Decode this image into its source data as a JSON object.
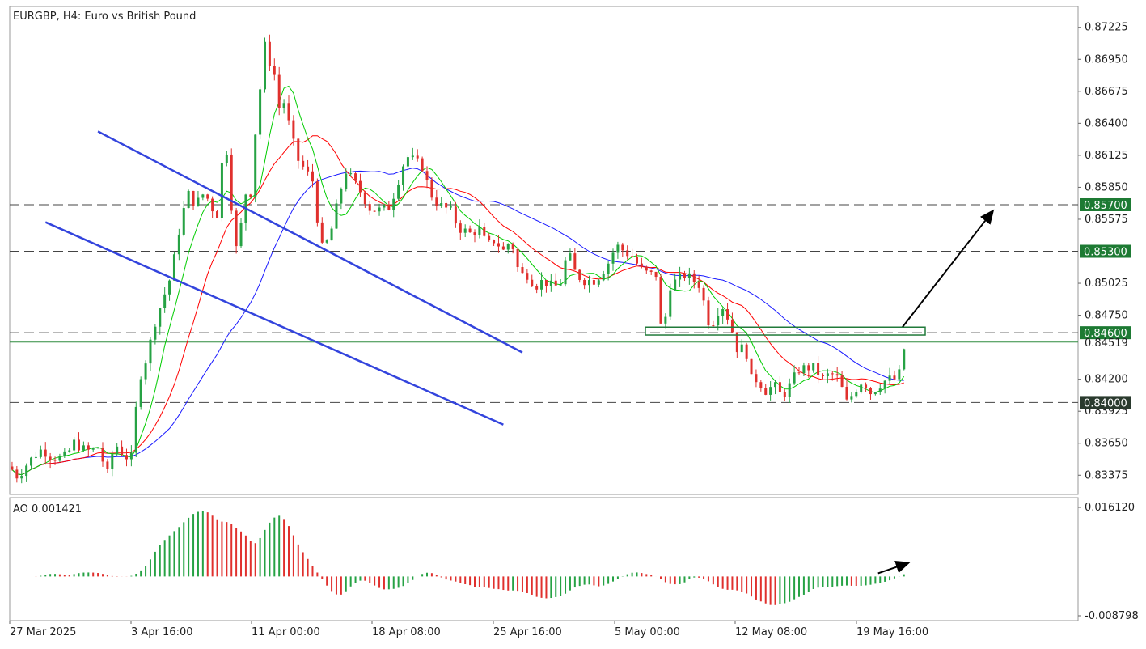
{
  "chart_data": {
    "type": "candlestick",
    "title": "EURGBP, H4:  Euro vs British Pound",
    "ylim": [
      0.8319,
      0.8743
    ],
    "y_ticks": [
      "0.87225",
      "0.86950",
      "0.86675",
      "0.86400",
      "0.86125",
      "0.85850",
      "0.85575",
      "0.85025",
      "0.84750",
      "0.84200",
      "0.83925",
      "0.83650",
      "0.83375"
    ],
    "x_ticks": [
      "27 Mar 2025",
      "3 Apr 16:00",
      "11 Apr 00:00",
      "18 Apr 08:00",
      "25 Apr 16:00",
      "5 May 00:00",
      "12 May 08:00",
      "19 May 16:00"
    ],
    "levels": [
      {
        "price": 0.857,
        "label": "0.85700"
      },
      {
        "price": 0.853,
        "label": "0.85300"
      },
      {
        "price": 0.846,
        "label": "0.84600"
      },
      {
        "price": 0.84,
        "label": "0.84000"
      }
    ],
    "current_price": {
      "price": 0.84519,
      "label": "0.84519"
    },
    "price_path": [
      [
        0,
        0.8345
      ],
      [
        10,
        0.8336
      ],
      [
        20,
        0.8346
      ],
      [
        30,
        0.8354
      ],
      [
        40,
        0.836
      ],
      [
        50,
        0.8354
      ],
      [
        60,
        0.8352
      ],
      [
        70,
        0.8354
      ],
      [
        80,
        0.8366
      ],
      [
        90,
        0.836
      ],
      [
        100,
        0.8358
      ],
      [
        110,
        0.8362
      ],
      [
        115,
        0.835
      ],
      [
        120,
        0.8336
      ],
      [
        130,
        0.8365
      ],
      [
        140,
        0.8356
      ],
      [
        150,
        0.835
      ],
      [
        160,
        0.842
      ],
      [
        170,
        0.844
      ],
      [
        180,
        0.847
      ],
      [
        190,
        0.849
      ],
      [
        200,
        0.851
      ],
      [
        210,
        0.855
      ],
      [
        220,
        0.858
      ],
      [
        230,
        0.857
      ],
      [
        240,
        0.858
      ],
      [
        250,
        0.857
      ],
      [
        255,
        0.8545
      ],
      [
        260,
        0.86
      ],
      [
        270,
        0.862
      ],
      [
        275,
        0.856
      ],
      [
        280,
        0.8532
      ],
      [
        285,
        0.8545
      ],
      [
        290,
        0.858
      ],
      [
        300,
        0.858
      ],
      [
        305,
        0.865
      ],
      [
        312,
        0.868
      ],
      [
        316,
        0.871
      ],
      [
        320,
        0.869
      ],
      [
        325,
        0.87
      ],
      [
        330,
        0.866
      ],
      [
        335,
        0.865
      ],
      [
        340,
        0.866
      ],
      [
        345,
        0.864
      ],
      [
        355,
        0.861
      ],
      [
        365,
        0.86
      ],
      [
        375,
        0.859
      ],
      [
        385,
        0.8532
      ],
      [
        395,
        0.854
      ],
      [
        405,
        0.857
      ],
      [
        415,
        0.86
      ],
      [
        425,
        0.859
      ],
      [
        435,
        0.858
      ],
      [
        445,
        0.8567
      ],
      [
        455,
        0.8565
      ],
      [
        470,
        0.8568
      ],
      [
        480,
        0.859
      ],
      [
        490,
        0.8612
      ],
      [
        500,
        0.8608
      ],
      [
        510,
        0.8603
      ],
      [
        520,
        0.858
      ],
      [
        530,
        0.857
      ],
      [
        545,
        0.8565
      ],
      [
        555,
        0.855
      ],
      [
        570,
        0.8545
      ],
      [
        580,
        0.855
      ],
      [
        590,
        0.8535
      ],
      [
        600,
        0.854
      ],
      [
        610,
        0.853
      ],
      [
        620,
        0.854
      ],
      [
        630,
        0.851
      ],
      [
        640,
        0.851
      ],
      [
        650,
        0.85
      ],
      [
        660,
        0.8505
      ],
      [
        670,
        0.85
      ],
      [
        680,
        0.85
      ],
      [
        690,
        0.853
      ],
      [
        700,
        0.851
      ],
      [
        710,
        0.8505
      ],
      [
        725,
        0.8505
      ],
      [
        740,
        0.852
      ],
      [
        750,
        0.8535
      ],
      [
        760,
        0.853
      ],
      [
        770,
        0.8525
      ],
      [
        780,
        0.8515
      ],
      [
        790,
        0.851
      ],
      [
        800,
        0.851
      ],
      [
        803,
        0.8465
      ],
      [
        810,
        0.8468
      ],
      [
        815,
        0.85
      ],
      [
        825,
        0.8505
      ],
      [
        835,
        0.851
      ],
      [
        845,
        0.8505
      ],
      [
        855,
        0.85
      ],
      [
        862,
        0.847
      ],
      [
        870,
        0.847
      ],
      [
        880,
        0.8485
      ],
      [
        890,
        0.847
      ],
      [
        900,
        0.8445
      ],
      [
        910,
        0.8448
      ],
      [
        915,
        0.842
      ],
      [
        925,
        0.842
      ],
      [
        935,
        0.841
      ],
      [
        945,
        0.8415
      ],
      [
        955,
        0.8405
      ],
      [
        965,
        0.8415
      ],
      [
        975,
        0.8428
      ],
      [
        985,
        0.843
      ],
      [
        995,
        0.843
      ],
      [
        1005,
        0.842
      ],
      [
        1015,
        0.8425
      ],
      [
        1025,
        0.842
      ],
      [
        1035,
        0.84
      ],
      [
        1045,
        0.841
      ],
      [
        1055,
        0.842
      ],
      [
        1065,
        0.8408
      ],
      [
        1075,
        0.8415
      ],
      [
        1085,
        0.842
      ],
      [
        1095,
        0.842
      ],
      [
        1100,
        0.8425
      ],
      [
        1105,
        0.8445
      ],
      [
        1110,
        0.8452
      ]
    ],
    "moving_averages": [
      {
        "color": "#1a1aff",
        "period": 34
      },
      {
        "color": "#ff0000",
        "period": 16
      },
      {
        "color": "#00cc00",
        "period": 7
      }
    ],
    "channel": {
      "upper": [
        [
          18,
          0.8633
        ],
        [
          107,
          0.8443
        ]
      ],
      "lower": [
        [
          7,
          0.8555
        ],
        [
          103,
          0.8381
        ]
      ]
    },
    "box": {
      "x_from": 798,
      "x_to": 1144,
      "price_top": 0.84648,
      "price_bottom": 0.8458
    },
    "up_arrow": {
      "from": [
        1116,
        0.8465
      ],
      "to": [
        1228,
        0.8565
      ]
    },
    "indicator": {
      "name": "AO 0.001421",
      "ylim": [
        -0.008798,
        0.01612
      ],
      "y_ticks": [
        "0.016120",
        "-0.008798"
      ],
      "arrow": true
    },
    "colors": {
      "bull": "#26a244",
      "bear": "#e0302d",
      "channel": "#3344dd",
      "level_box": "#217a3a"
    }
  }
}
